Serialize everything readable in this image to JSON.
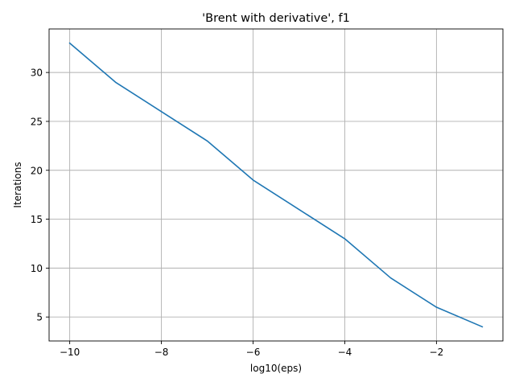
{
  "chart_data": {
    "type": "line",
    "title": "'Brent with derivative', f1",
    "xlabel": "log10(eps)",
    "ylabel": "Iterations",
    "x": [
      -10,
      -9,
      -8,
      -7,
      -6,
      -5,
      -4,
      -3,
      -2,
      -1
    ],
    "series": [
      {
        "values": [
          33,
          29,
          26,
          23,
          19,
          16,
          13,
          9,
          6,
          4
        ],
        "color": "#1f77b4"
      }
    ],
    "xlim": [
      -10.45,
      -0.55
    ],
    "ylim": [
      2.55,
      34.45
    ],
    "x_ticks": [
      -10,
      -8,
      -6,
      -4,
      -2
    ],
    "x_tick_labels": [
      "−10",
      "−8",
      "−6",
      "−4",
      "−2"
    ],
    "y_ticks": [
      5,
      10,
      15,
      20,
      25,
      30
    ],
    "y_tick_labels": [
      "5",
      "10",
      "15",
      "20",
      "25",
      "30"
    ],
    "grid": true,
    "legend": "none"
  }
}
